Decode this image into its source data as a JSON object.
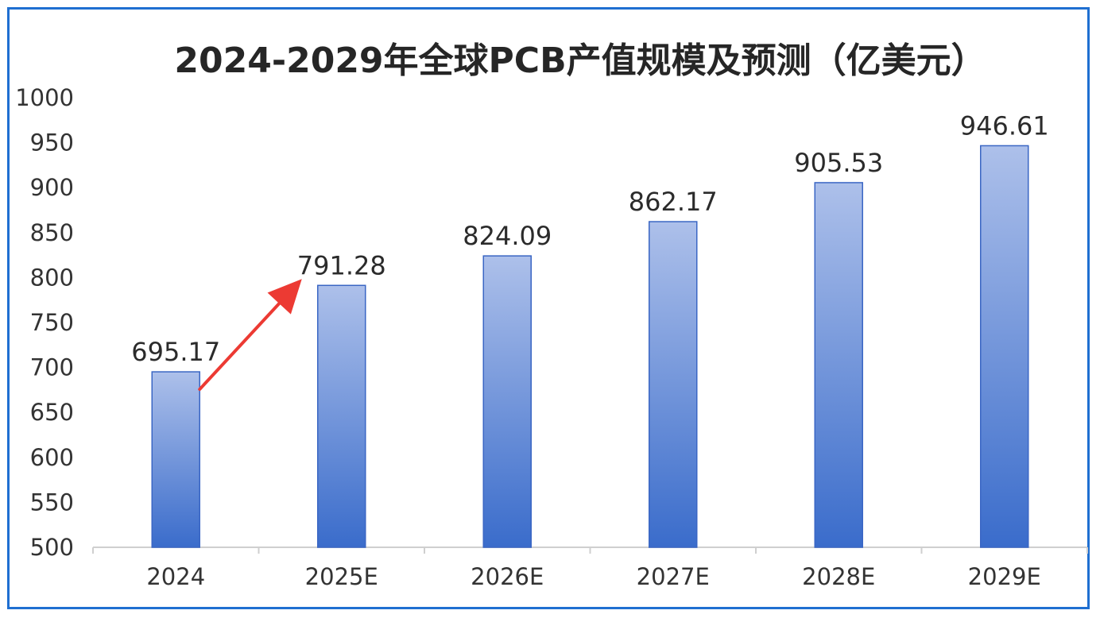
{
  "chart_data": {
    "type": "bar",
    "title": "2024-2029年全球PCB产值规模及预测（亿美元）",
    "categories": [
      "2024",
      "2025E",
      "2026E",
      "2027E",
      "2028E",
      "2029E"
    ],
    "values": [
      695.17,
      791.28,
      824.09,
      862.17,
      905.53,
      946.61
    ],
    "value_labels": [
      "695.17",
      "791.28",
      "824.09",
      "862.17",
      "905.53",
      "946.61"
    ],
    "ylim": [
      500,
      1000
    ],
    "yticks": [
      "500",
      "550",
      "600",
      "650",
      "700",
      "750",
      "800",
      "850",
      "900",
      "950",
      "1000"
    ],
    "grid": false,
    "legend": "none",
    "annotation": "red arrow pointing from 2024 bar to 2025E bar",
    "colors": {
      "bar_top": "#adc0ea",
      "bar_bottom": "#3a6ccb",
      "bar_edge": "#3a66c4",
      "arrow": "#ec3a33",
      "frame": "#1f6fd1",
      "axis": "#cfcfcf"
    }
  }
}
